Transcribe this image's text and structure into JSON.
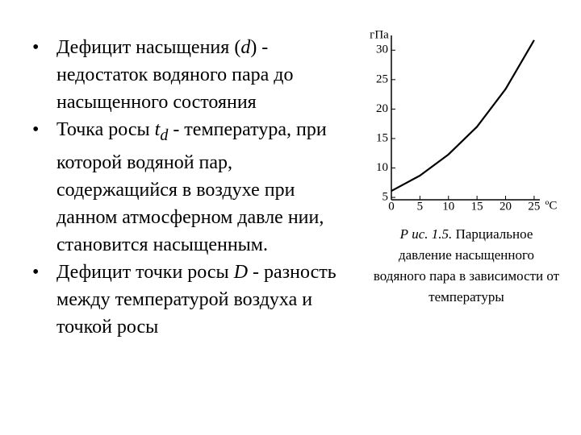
{
  "bullets": [
    [
      "Дефицит насыщения (",
      "d",
      ") - недостаток водяного пара до насыщенного состояния"
    ],
    [
      "Точка росы ",
      "t",
      "d",
      " - температура, при которой водяной пар, содержащийся в воздухе при данном атмосферном давле нии, становится насыщенным."
    ],
    [
      "Дефицит точки росы ",
      "D",
      " - разность между температурой воздуха и точкой росы"
    ]
  ],
  "caption": [
    "Р ис. 1.5.",
    " Парциальное давление насыщенного водяного пара в зависимости от температуры"
  ],
  "chart_data": {
    "type": "line",
    "y_label": "гПа",
    "x_label": "ºС",
    "x": [
      0,
      5,
      10,
      15,
      20,
      25
    ],
    "values": [
      6.1,
      8.7,
      12.3,
      17.0,
      23.4,
      31.7
    ],
    "color": "#000000",
    "xlim": [
      0,
      26
    ],
    "ylim": [
      4.6,
      32.5
    ],
    "xticks": [
      0,
      5,
      10,
      15,
      20,
      25
    ],
    "yticks": [
      5,
      10,
      15,
      20,
      25,
      30
    ]
  }
}
